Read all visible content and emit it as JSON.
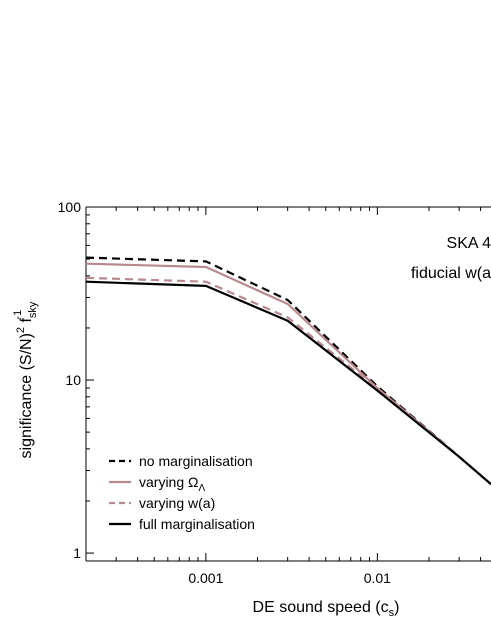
{
  "chart_data": {
    "type": "line",
    "x_scale": "log",
    "y_scale": "log",
    "xlim": [
      0.0002,
      0.046
    ],
    "ylim": [
      0.9,
      100
    ],
    "xlabel": {
      "main": "DE sound speed (c",
      "sub": "s",
      "end": ")"
    },
    "ylabel": {
      "a": "significance (S/N)",
      "sup2": "2",
      "f": " f",
      "sub_sky": "sky",
      "sup_m1": "-1"
    },
    "x_tick_labels": [
      {
        "value": 0.001,
        "label": "0.001"
      },
      {
        "value": 0.01,
        "label": "0.01"
      }
    ],
    "y_tick_labels": [
      {
        "value": 1,
        "label": "1"
      },
      {
        "value": 10,
        "label": "10"
      },
      {
        "value": 100,
        "label": "100"
      }
    ],
    "annotations": [
      "SKA 4",
      "fiducial w(a"
    ],
    "legend_position": "bottom-left",
    "series": [
      {
        "name": "no marginalisation",
        "color": "#000000",
        "dash": "dashed",
        "x": [
          0.0002,
          0.001,
          0.003,
          0.01,
          0.03,
          0.046
        ],
        "y": [
          51,
          48.5,
          29,
          9.2,
          3.6,
          2.5
        ]
      },
      {
        "name": {
          "main": "varying Ω",
          "sub": "Λ"
        },
        "color": "#b88a8e",
        "dash": "solid",
        "x": [
          0.0002,
          0.001,
          0.003,
          0.01,
          0.03,
          0.046
        ],
        "y": [
          47,
          45,
          27.5,
          9.0,
          3.6,
          2.5
        ]
      },
      {
        "name": "varying w(a)",
        "color": "#b88a8e",
        "dash": "dashed",
        "x": [
          0.0002,
          0.001,
          0.003,
          0.01,
          0.03,
          0.046
        ],
        "y": [
          39,
          37,
          23,
          8.9,
          3.6,
          2.5
        ]
      },
      {
        "name": "full marginalisation",
        "color": "#000000",
        "dash": "solid",
        "x": [
          0.0002,
          0.001,
          0.003,
          0.01,
          0.03,
          0.046
        ],
        "y": [
          37,
          35,
          22,
          8.7,
          3.6,
          2.5
        ]
      }
    ]
  }
}
